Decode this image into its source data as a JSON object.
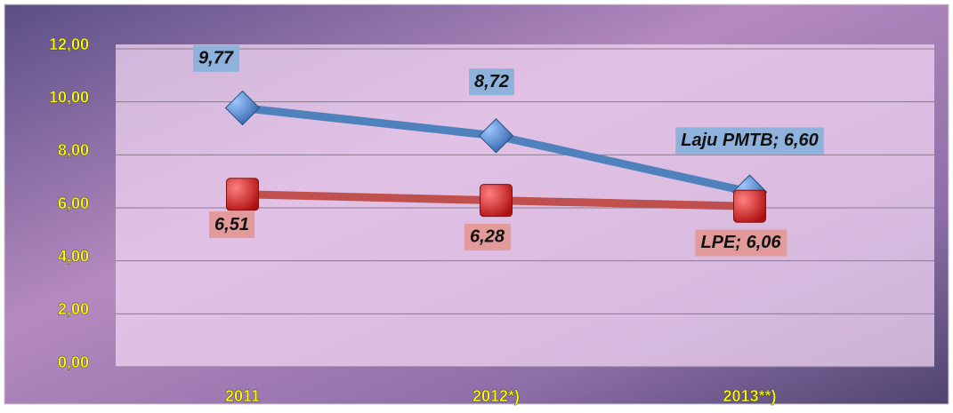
{
  "chart_data": {
    "type": "line",
    "categories": [
      "2011",
      "2012*)",
      "2013**)"
    ],
    "series": [
      {
        "name": "Laju PMTB",
        "color": "#4f81bd",
        "values": [
          9.77,
          8.72,
          6.6
        ],
        "value_labels": [
          "9,77",
          "8,72",
          "6,60"
        ]
      },
      {
        "name": "LPE",
        "color": "#c0504d",
        "values": [
          6.51,
          6.28,
          6.06
        ],
        "value_labels": [
          "6,51",
          "6,28",
          "6,06"
        ]
      }
    ],
    "label_separator": "; ",
    "ylim": [
      0,
      12
    ],
    "yticks": [
      {
        "value": 0,
        "label": "0,00"
      },
      {
        "value": 2,
        "label": "2,00"
      },
      {
        "value": 4,
        "label": "4,00"
      },
      {
        "value": 6,
        "label": "6,00"
      },
      {
        "value": 8,
        "label": "8,00"
      },
      {
        "value": 10,
        "label": "10,00"
      },
      {
        "value": 12,
        "label": "12,00"
      }
    ],
    "grid": true
  }
}
